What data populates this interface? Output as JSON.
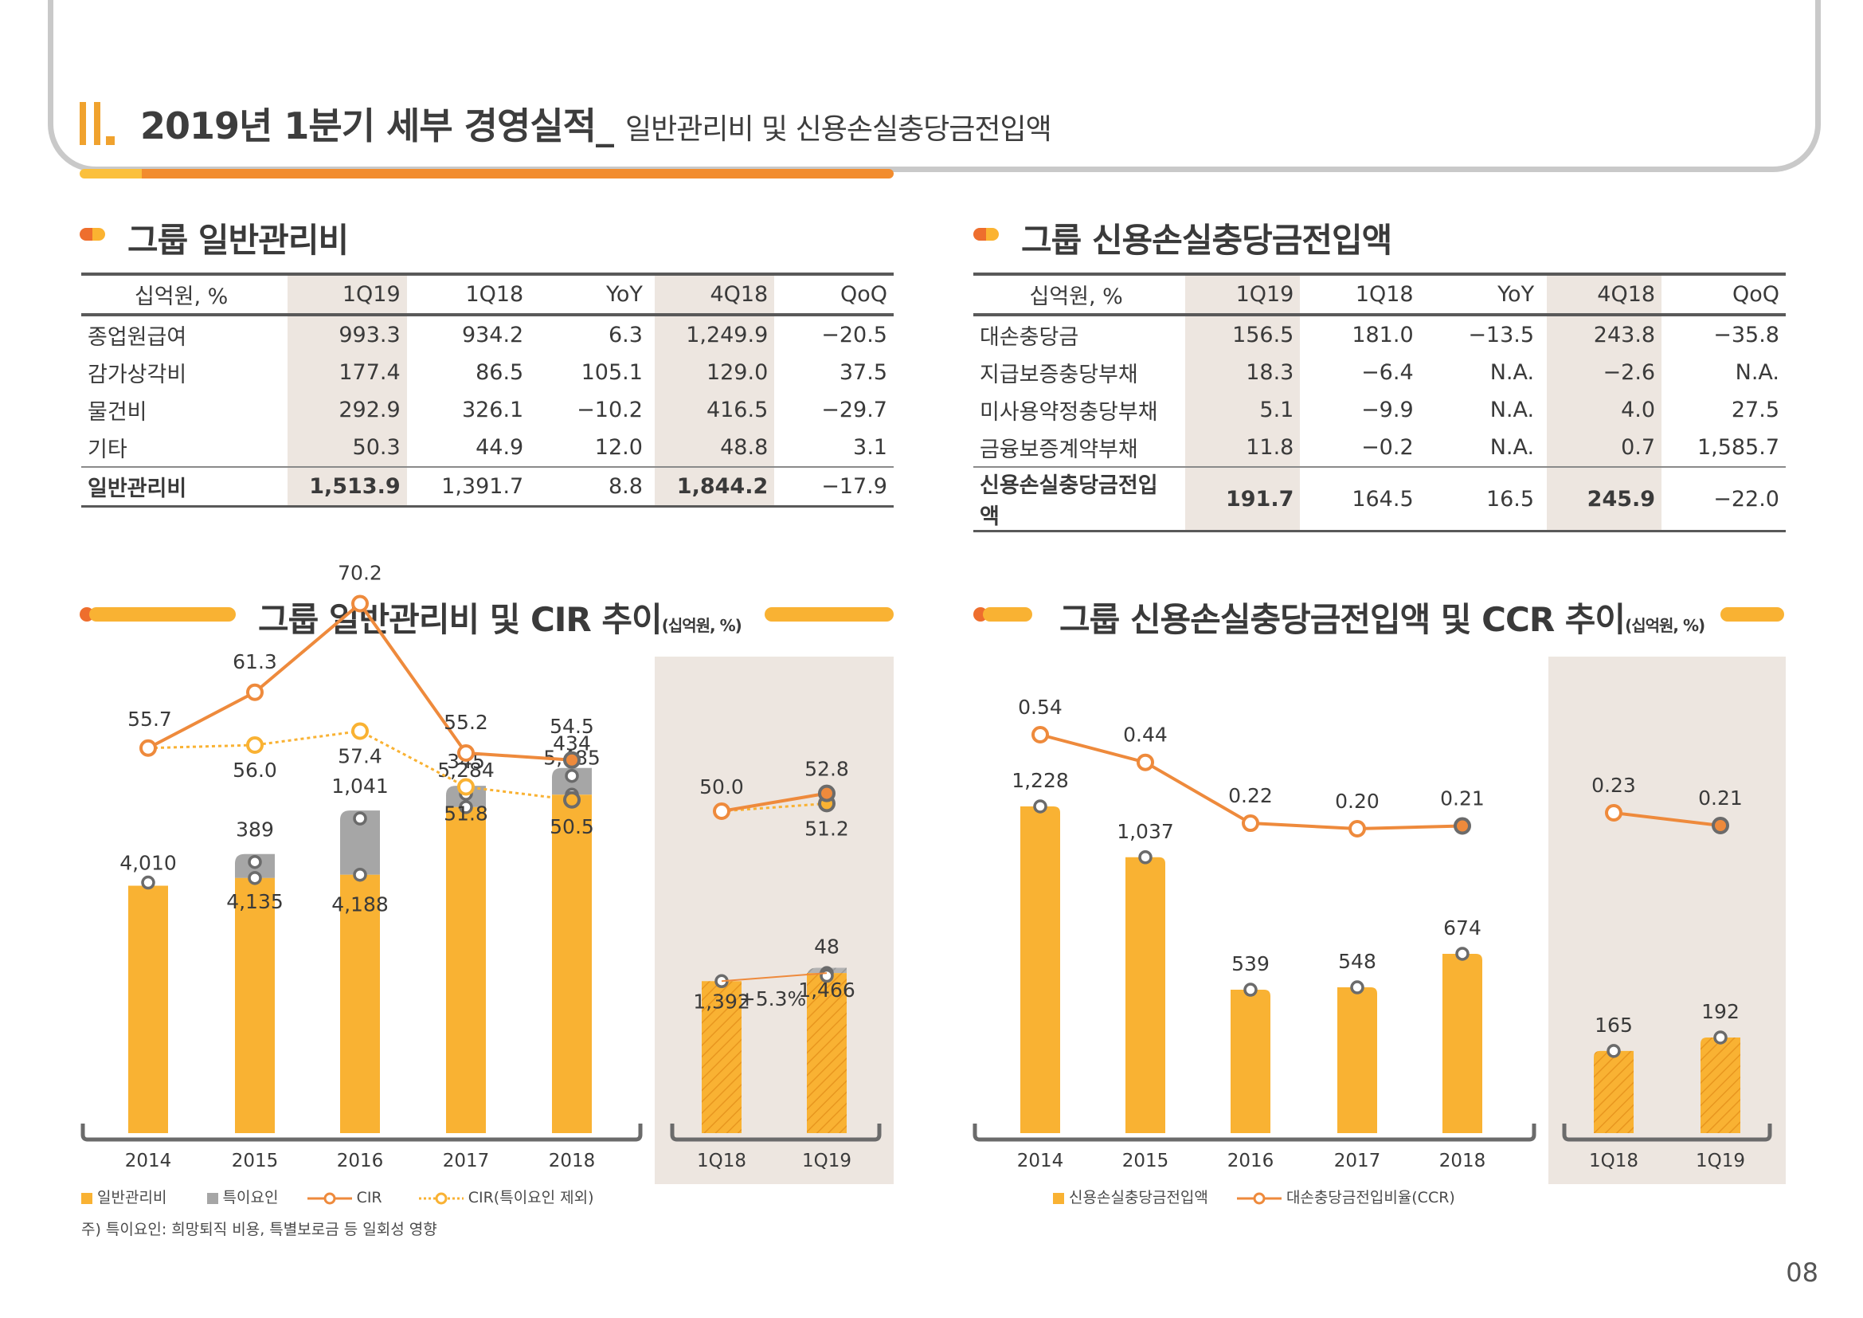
{
  "header": {
    "title": "2019년 1분기 세부 경영실적_",
    "subtitle": "일반관리비 및 신용손실충당금전입액"
  },
  "colors": {
    "orange": "#f9b233",
    "darkorange": "#ee8a3c",
    "gray": "#a6a6a6",
    "panel": "#ede6e0"
  },
  "table_left": {
    "title": "그룹 일반관리비",
    "columns": [
      "십억원, %",
      "1Q19",
      "1Q18",
      "YoY",
      "4Q18",
      "QoQ"
    ],
    "rows": [
      [
        "종업원급여",
        "993.3",
        "934.2",
        "6.3",
        "1,249.9",
        "-20.5"
      ],
      [
        "감가상각비",
        "177.4",
        "86.5",
        "105.1",
        "129.0",
        "37.5"
      ],
      [
        "물건비",
        "292.9",
        "326.1",
        "-10.2",
        "416.5",
        "-29.7"
      ],
      [
        "기타",
        "50.3",
        "44.9",
        "12.0",
        "48.8",
        "3.1"
      ]
    ],
    "total": [
      "일반관리비",
      "1,513.9",
      "1,391.7",
      "8.8",
      "1,844.2",
      "-17.9"
    ]
  },
  "table_right": {
    "title": "그룹 신용손실충당금전입액",
    "columns": [
      "십억원, %",
      "1Q19",
      "1Q18",
      "YoY",
      "4Q18",
      "QoQ"
    ],
    "rows": [
      [
        "대손충당금",
        "156.5",
        "181.0",
        "-13.5",
        "243.8",
        "-35.8"
      ],
      [
        "지급보증충당부채",
        "18.3",
        "-6.4",
        "N.A.",
        "-2.6",
        "N.A."
      ],
      [
        "미사용약정충당부채",
        "5.1",
        "-9.9",
        "N.A.",
        "4.0",
        "27.5"
      ],
      [
        "금융보증계약부채",
        "11.8",
        "-0.2",
        "N.A.",
        "0.7",
        "1,585.7"
      ]
    ],
    "total": [
      "신용손실충당금전입액",
      "191.7",
      "164.5",
      "16.5",
      "245.9",
      "-22.0"
    ]
  },
  "chart_left_title": "그룹 일반관리비 및 CIR 추이",
  "chart_left_unit": "(십억원, %)",
  "chart_right_title": "그룹 신용손실충당금전입액 및 CCR 추이",
  "chart_right_unit": "(십억원, %)",
  "legend_left": [
    "일반관리비",
    "특이요인",
    "CIR",
    "CIR(특이요인 제외)"
  ],
  "legend_right": [
    "신용손실충당금전입액",
    "대손충당금전입비율(CCR)"
  ],
  "note": "주) 특이요인: 희망퇴직 비용, 특별보로금 등 일회성 영향",
  "growth_label": "+5.3%",
  "page_number": "08",
  "chart_data": [
    {
      "type": "bar",
      "name": "left-annual",
      "categories": [
        "2014",
        "2015",
        "2016",
        "2017",
        "2018"
      ],
      "series": [
        {
          "name": "일반관리비",
          "values": [
            4010,
            4135,
            4188,
            5284,
            5485
          ]
        },
        {
          "name": "특이요인",
          "values": [
            0,
            389,
            1041,
            345,
            434
          ]
        },
        {
          "name": "CIR",
          "values": [
            55.7,
            61.3,
            70.2,
            55.2,
            54.5
          ]
        },
        {
          "name": "CIR(특이요인 제외)",
          "values": [
            55.7,
            56.0,
            57.4,
            51.8,
            50.5
          ]
        }
      ],
      "labels": {
        "bar": [
          "4,010",
          "4,135",
          "4,188",
          "5,284",
          "5,485"
        ],
        "special": [
          "",
          "389",
          "1,041",
          "345",
          "434"
        ],
        "cir": [
          "55.7",
          "61.3",
          "70.2",
          "55.2",
          "54.5"
        ],
        "cir_ex": [
          "",
          "56.0",
          "57.4",
          "51.8",
          "50.5"
        ]
      }
    },
    {
      "type": "bar",
      "name": "left-quarterly",
      "categories": [
        "1Q18",
        "1Q19"
      ],
      "series": [
        {
          "name": "일반관리비",
          "values": [
            1392,
            1466
          ]
        },
        {
          "name": "특이요인",
          "values": [
            0,
            48
          ]
        },
        {
          "name": "CIR",
          "values": [
            50.0,
            52.8
          ]
        },
        {
          "name": "CIR(특이요인 제외)",
          "values": [
            50.0,
            51.2
          ]
        }
      ],
      "labels": {
        "bar": [
          "1,392",
          "1,466"
        ],
        "special": [
          "",
          "48"
        ],
        "cir": [
          "50.0",
          "52.8"
        ],
        "cir_ex": [
          "",
          "51.2"
        ]
      }
    },
    {
      "type": "bar",
      "name": "right-annual",
      "categories": [
        "2014",
        "2015",
        "2016",
        "2017",
        "2018"
      ],
      "series": [
        {
          "name": "신용손실충당금전입액",
          "values": [
            1228,
            1037,
            539,
            548,
            674
          ]
        },
        {
          "name": "대손충당금전입비율(CCR)",
          "values": [
            0.54,
            0.44,
            0.22,
            0.2,
            0.21
          ]
        }
      ],
      "labels": {
        "bar": [
          "1,228",
          "1,037",
          "539",
          "548",
          "674"
        ],
        "ccr": [
          "0.54",
          "0.44",
          "0.22",
          "0.20",
          "0.21"
        ]
      }
    },
    {
      "type": "bar",
      "name": "right-quarterly",
      "categories": [
        "1Q18",
        "1Q19"
      ],
      "series": [
        {
          "name": "신용손실충당금전입액",
          "values": [
            165,
            192
          ]
        },
        {
          "name": "대손충당금전입비율(CCR)",
          "values": [
            0.23,
            0.21
          ]
        }
      ],
      "labels": {
        "bar": [
          "165",
          "192"
        ],
        "ccr": [
          "0.23",
          "0.21"
        ]
      }
    }
  ]
}
